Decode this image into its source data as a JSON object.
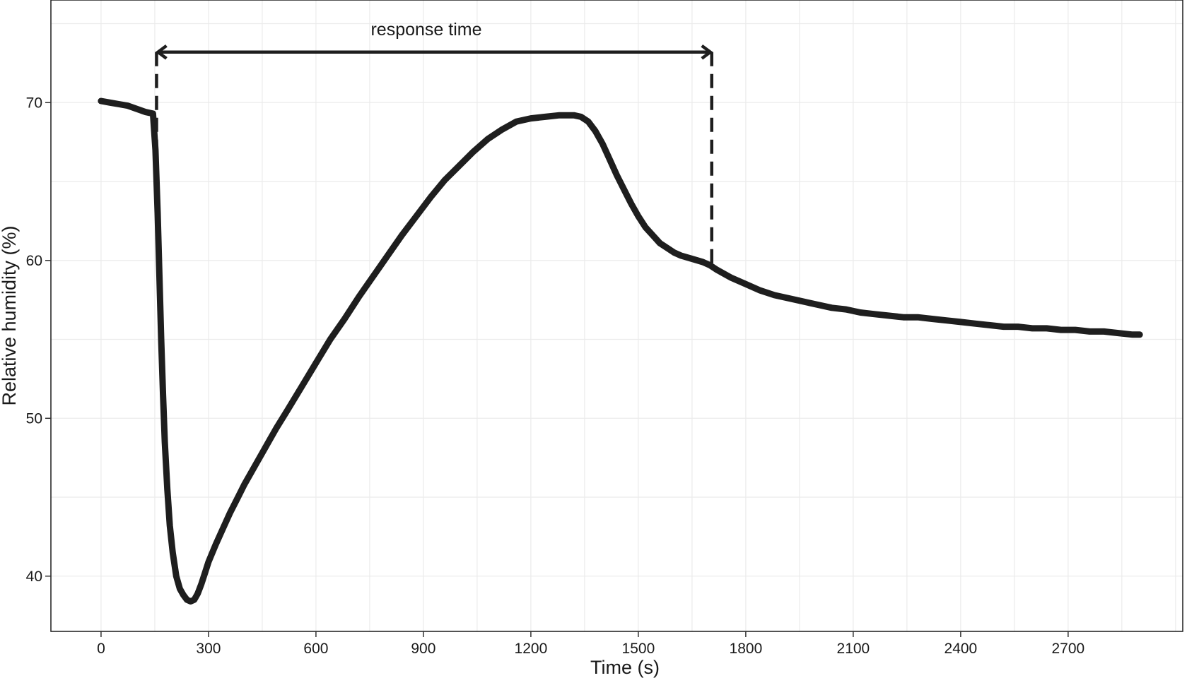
{
  "chart_data": {
    "type": "line",
    "title": "",
    "xlabel": "Time (s)",
    "ylabel": "Relative humidity (%)",
    "xlim": [
      -140,
      3020
    ],
    "ylim": [
      36.5,
      76.5
    ],
    "x_ticks": [
      0,
      300,
      600,
      900,
      1200,
      1500,
      1800,
      2100,
      2400,
      2700
    ],
    "x_tick_labels": [
      "0",
      "300",
      "600",
      "900",
      "1200",
      "1500",
      "1800",
      "2100",
      "2400",
      "2700"
    ],
    "y_ticks": [
      40,
      50,
      60,
      70
    ],
    "y_tick_labels": [
      "40",
      "50",
      "60",
      "70"
    ],
    "grid": true,
    "series": [
      {
        "color": "#1e1e1e",
        "x": [
          0,
          25,
          50,
          75,
          100,
          125,
          145,
          152,
          158,
          163,
          168,
          173,
          178,
          185,
          192,
          200,
          210,
          220,
          230,
          240,
          250,
          260,
          270,
          280,
          290,
          300,
          320,
          340,
          360,
          380,
          400,
          430,
          460,
          490,
          520,
          560,
          600,
          640,
          680,
          720,
          760,
          800,
          840,
          880,
          920,
          960,
          1000,
          1040,
          1080,
          1120,
          1160,
          1200,
          1240,
          1280,
          1320,
          1340,
          1360,
          1380,
          1400,
          1420,
          1440,
          1460,
          1480,
          1500,
          1520,
          1540,
          1560,
          1580,
          1600,
          1620,
          1650,
          1680,
          1700,
          1720,
          1760,
          1800,
          1840,
          1880,
          1920,
          1960,
          2000,
          2040,
          2080,
          2120,
          2160,
          2200,
          2240,
          2280,
          2320,
          2360,
          2400,
          2440,
          2480,
          2520,
          2560,
          2600,
          2640,
          2680,
          2720,
          2760,
          2800,
          2840,
          2880,
          2900
        ],
        "y": [
          70.1,
          70.0,
          69.9,
          69.8,
          69.6,
          69.4,
          69.3,
          67.0,
          63.0,
          59.0,
          55.0,
          51.5,
          48.5,
          45.5,
          43.2,
          41.5,
          40.0,
          39.2,
          38.8,
          38.5,
          38.4,
          38.5,
          38.9,
          39.5,
          40.2,
          40.9,
          42.0,
          43.0,
          44.0,
          44.9,
          45.8,
          47.0,
          48.2,
          49.4,
          50.5,
          52.0,
          53.5,
          55.0,
          56.3,
          57.7,
          59.0,
          60.3,
          61.6,
          62.8,
          64.0,
          65.1,
          66.0,
          66.9,
          67.7,
          68.3,
          68.8,
          69.0,
          69.1,
          69.2,
          69.2,
          69.1,
          68.8,
          68.2,
          67.4,
          66.4,
          65.4,
          64.5,
          63.6,
          62.8,
          62.1,
          61.6,
          61.1,
          60.8,
          60.5,
          60.3,
          60.1,
          59.9,
          59.7,
          59.4,
          58.9,
          58.5,
          58.1,
          57.8,
          57.6,
          57.4,
          57.2,
          57.0,
          56.9,
          56.7,
          56.6,
          56.5,
          56.4,
          56.4,
          56.3,
          56.2,
          56.1,
          56.0,
          55.9,
          55.8,
          55.8,
          55.7,
          55.7,
          55.6,
          55.6,
          55.5,
          55.5,
          55.4,
          55.3,
          55.3
        ]
      }
    ],
    "annotations": [
      {
        "text": "response time",
        "type": "double-arrow",
        "x_start": 155,
        "x_end": 1705,
        "y": 73.2
      }
    ]
  }
}
